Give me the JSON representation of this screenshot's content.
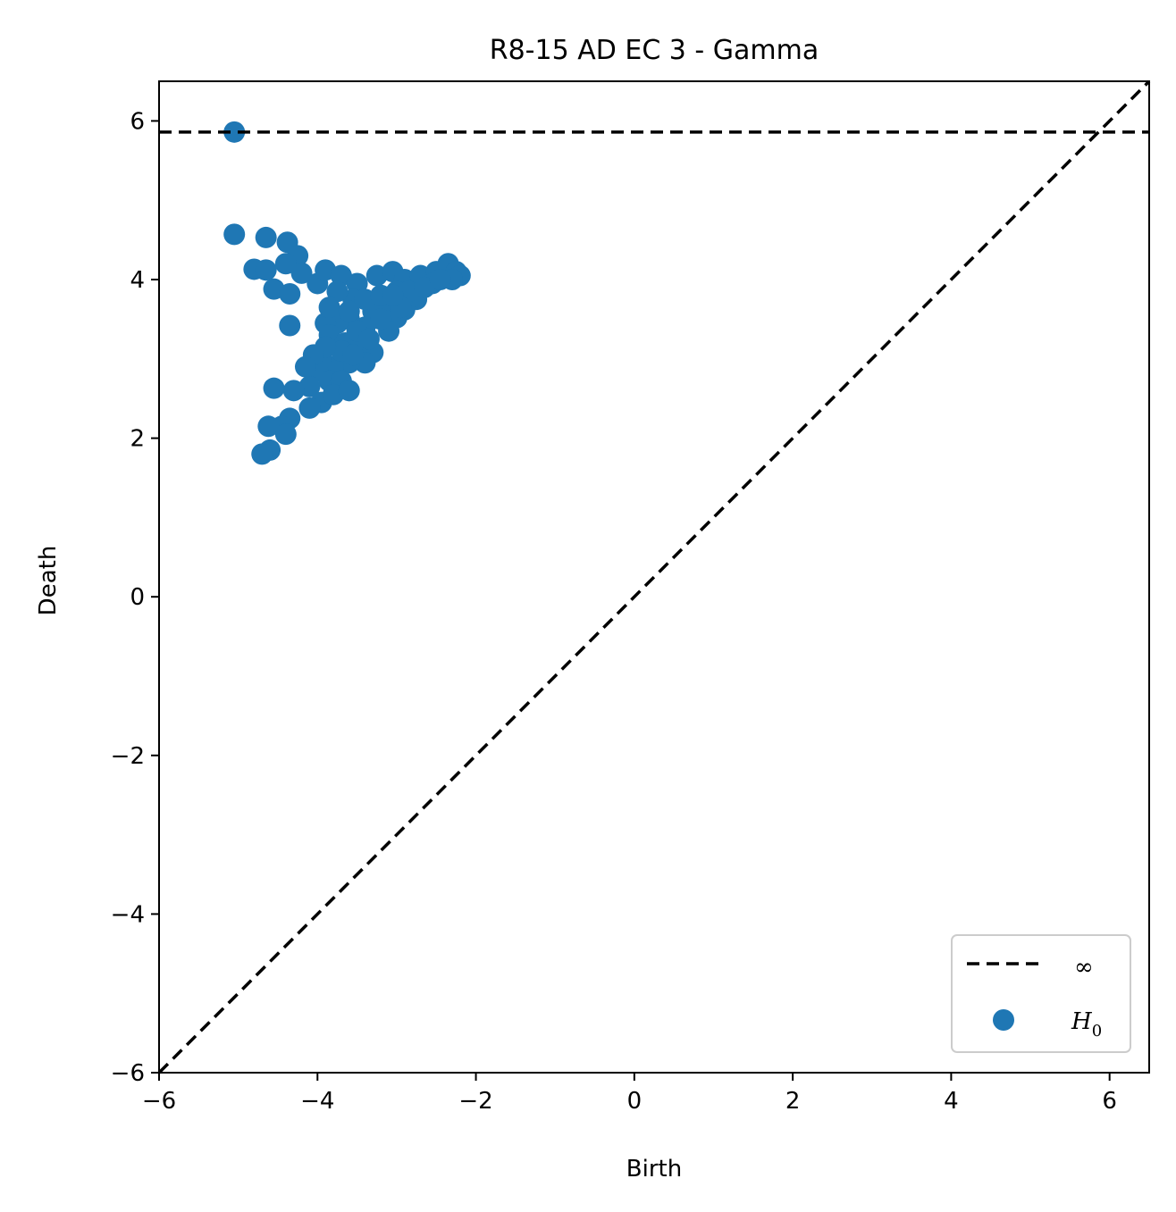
{
  "chart_data": {
    "type": "scatter",
    "title": "R8-15 AD EC 3 - Gamma",
    "xlabel": "Birth",
    "ylabel": "Death",
    "xlim": [
      -6,
      6.5
    ],
    "ylim": [
      -6,
      6.5
    ],
    "xticks": [
      -6,
      -4,
      -2,
      0,
      2,
      4,
      6
    ],
    "yticks": [
      -6,
      -4,
      -2,
      0,
      2,
      4,
      6
    ],
    "xtick_labels": [
      "−6",
      "−4",
      "−2",
      "0",
      "2",
      "4",
      "6"
    ],
    "ytick_labels": [
      "−6",
      "−4",
      "−2",
      "0",
      "2",
      "4",
      "6"
    ],
    "infinity_y": 5.86,
    "legend_position": "lower right",
    "legend": [
      {
        "label": "∞",
        "kind": "dashed-line",
        "color": "#000000"
      },
      {
        "label": "H",
        "subscript": "0",
        "kind": "marker",
        "color": "#1f77b4"
      }
    ],
    "series": [
      {
        "name": "H0",
        "color": "#1f77b4",
        "points": [
          [
            -5.05,
            5.86
          ],
          [
            -5.05,
            4.57
          ],
          [
            -4.65,
            4.53
          ],
          [
            -4.8,
            4.13
          ],
          [
            -4.65,
            4.12
          ],
          [
            -4.38,
            4.47
          ],
          [
            -4.25,
            4.3
          ],
          [
            -4.4,
            4.2
          ],
          [
            -4.55,
            3.88
          ],
          [
            -4.35,
            3.82
          ],
          [
            -4.35,
            3.42
          ],
          [
            -4.2,
            4.08
          ],
          [
            -4.0,
            3.95
          ],
          [
            -3.9,
            4.12
          ],
          [
            -3.7,
            4.05
          ],
          [
            -3.5,
            3.95
          ],
          [
            -3.25,
            4.05
          ],
          [
            -3.05,
            4.1
          ],
          [
            -2.9,
            4.0
          ],
          [
            -2.7,
            4.05
          ],
          [
            -2.5,
            4.1
          ],
          [
            -2.35,
            4.2
          ],
          [
            -2.25,
            4.1
          ],
          [
            -2.2,
            4.05
          ],
          [
            -2.3,
            4.0
          ],
          [
            -2.55,
            3.95
          ],
          [
            -2.75,
            3.75
          ],
          [
            -2.9,
            3.62
          ],
          [
            -3.1,
            3.7
          ],
          [
            -3.3,
            3.6
          ],
          [
            -3.0,
            3.52
          ],
          [
            -3.1,
            3.35
          ],
          [
            -3.4,
            3.4
          ],
          [
            -3.6,
            3.5
          ],
          [
            -3.75,
            3.45
          ],
          [
            -3.9,
            3.45
          ],
          [
            -3.85,
            3.3
          ],
          [
            -3.65,
            3.2
          ],
          [
            -3.45,
            3.15
          ],
          [
            -3.3,
            3.08
          ],
          [
            -3.4,
            2.95
          ],
          [
            -3.6,
            2.95
          ],
          [
            -3.8,
            2.9
          ],
          [
            -3.95,
            3.0
          ],
          [
            -4.0,
            2.85
          ],
          [
            -3.85,
            2.72
          ],
          [
            -3.7,
            2.72
          ],
          [
            -4.1,
            2.65
          ],
          [
            -4.3,
            2.6
          ],
          [
            -4.55,
            2.63
          ],
          [
            -3.95,
            2.45
          ],
          [
            -4.1,
            2.38
          ],
          [
            -4.35,
            2.25
          ],
          [
            -4.45,
            2.15
          ],
          [
            -4.62,
            2.15
          ],
          [
            -4.4,
            2.05
          ],
          [
            -4.6,
            1.85
          ],
          [
            -4.7,
            1.8
          ],
          [
            -3.55,
            3.75
          ],
          [
            -3.75,
            3.85
          ],
          [
            -3.85,
            3.65
          ],
          [
            -3.6,
            3.6
          ],
          [
            -3.4,
            3.75
          ],
          [
            -3.2,
            3.8
          ],
          [
            -3.0,
            3.85
          ],
          [
            -2.85,
            3.85
          ],
          [
            -3.5,
            3.35
          ],
          [
            -3.7,
            3.1
          ],
          [
            -3.55,
            3.05
          ],
          [
            -3.9,
            3.15
          ],
          [
            -4.05,
            3.05
          ],
          [
            -3.8,
            2.55
          ],
          [
            -3.6,
            2.6
          ],
          [
            -4.15,
            2.9
          ],
          [
            -3.35,
            3.25
          ],
          [
            -3.2,
            3.5
          ],
          [
            -2.95,
            3.65
          ],
          [
            -3.05,
            3.8
          ],
          [
            -2.65,
            3.9
          ],
          [
            -2.45,
            4.0
          ]
        ]
      }
    ]
  }
}
